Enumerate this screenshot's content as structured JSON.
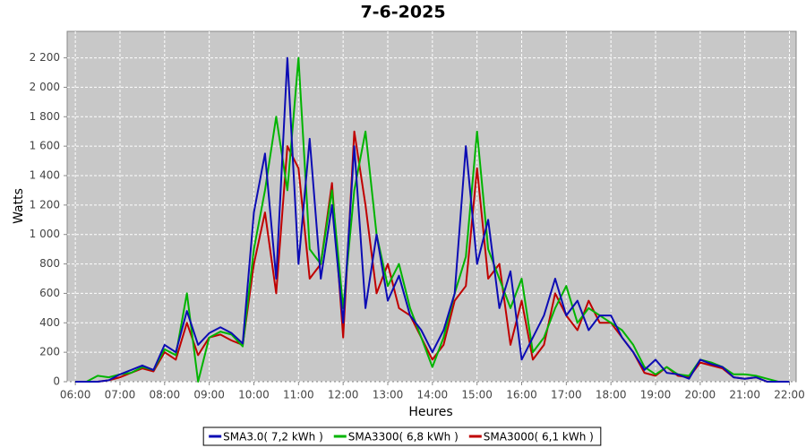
{
  "chart_data": {
    "type": "line",
    "title": "7-6-2025",
    "x_label": "Heures",
    "y_label": "Watts",
    "x": [
      "06:00",
      "06:15",
      "06:30",
      "06:45",
      "07:00",
      "07:15",
      "07:30",
      "07:45",
      "08:00",
      "08:15",
      "08:30",
      "08:45",
      "09:00",
      "09:15",
      "09:30",
      "09:45",
      "10:00",
      "10:15",
      "10:30",
      "10:45",
      "11:00",
      "11:15",
      "11:30",
      "11:45",
      "12:00",
      "12:15",
      "12:30",
      "12:45",
      "13:00",
      "13:15",
      "13:30",
      "13:45",
      "14:00",
      "14:15",
      "14:30",
      "14:45",
      "15:00",
      "15:15",
      "15:30",
      "15:45",
      "16:00",
      "16:15",
      "16:30",
      "16:45",
      "17:00",
      "17:15",
      "17:30",
      "17:45",
      "18:00",
      "18:15",
      "18:30",
      "18:45",
      "19:00",
      "19:15",
      "19:30",
      "19:45",
      "20:00",
      "20:15",
      "20:30",
      "20:45",
      "21:00",
      "21:15",
      "21:30",
      "21:45",
      "22:00"
    ],
    "series": [
      {
        "name": "SMA3.0( 7,2 kWh )",
        "color": "#0c0cb4",
        "values": [
          0,
          0,
          0,
          10,
          50,
          80,
          110,
          80,
          250,
          200,
          480,
          250,
          330,
          370,
          330,
          260,
          1150,
          1550,
          700,
          2200,
          800,
          1650,
          700,
          1200,
          400,
          1600,
          500,
          1000,
          550,
          720,
          450,
          350,
          200,
          350,
          600,
          1600,
          800,
          1100,
          500,
          750,
          150,
          300,
          450,
          700,
          450,
          550,
          350,
          450,
          450,
          300,
          200,
          80,
          150,
          60,
          50,
          20,
          150,
          120,
          100,
          30,
          20,
          30,
          0,
          0,
          0
        ]
      },
      {
        "name": "SMA3300( 6,8 kWh )",
        "color": "#00b400",
        "values": [
          0,
          0,
          40,
          30,
          50,
          60,
          100,
          80,
          220,
          180,
          600,
          0,
          300,
          340,
          320,
          240,
          900,
          1300,
          1800,
          1300,
          2200,
          900,
          800,
          1300,
          500,
          1300,
          1700,
          1000,
          650,
          800,
          500,
          300,
          100,
          300,
          600,
          850,
          1700,
          900,
          700,
          500,
          700,
          200,
          300,
          500,
          650,
          400,
          500,
          450,
          400,
          350,
          250,
          100,
          50,
          100,
          50,
          40,
          150,
          130,
          100,
          50,
          50,
          40,
          20,
          0,
          0
        ]
      },
      {
        "name": "SMA3000( 6,1 kWh )",
        "color": "#c00000",
        "values": [
          0,
          0,
          0,
          10,
          30,
          60,
          90,
          70,
          200,
          150,
          400,
          180,
          300,
          320,
          280,
          250,
          800,
          1150,
          600,
          1600,
          1450,
          700,
          800,
          1350,
          300,
          1700,
          1200,
          600,
          800,
          500,
          450,
          300,
          150,
          250,
          550,
          650,
          1450,
          700,
          800,
          250,
          550,
          150,
          250,
          600,
          450,
          350,
          550,
          400,
          400,
          300,
          200,
          60,
          40,
          100,
          40,
          30,
          130,
          110,
          90,
          30,
          20,
          30,
          0,
          0,
          0
        ]
      }
    ],
    "xlim": [
      "05:49",
      "22:09"
    ],
    "xticks": [
      "06:00",
      "07:00",
      "08:00",
      "09:00",
      "10:00",
      "11:00",
      "12:00",
      "13:00",
      "14:00",
      "15:00",
      "16:00",
      "17:00",
      "18:00",
      "19:00",
      "20:00",
      "21:00",
      "22:00"
    ],
    "ylim": [
      0,
      2380
    ],
    "yticks": [
      0,
      200,
      400,
      600,
      800,
      {
        "value": 1000,
        "label": "1 000"
      },
      {
        "value": 1200,
        "label": "1 200"
      },
      {
        "value": 1400,
        "label": "1 400"
      },
      {
        "value": 1600,
        "label": "1 600"
      },
      {
        "value": 1800,
        "label": "1 800"
      },
      {
        "value": 2000,
        "label": "2 000"
      },
      {
        "value": 2200,
        "label": "2 200"
      }
    ],
    "grid": true,
    "legend": "bottom"
  }
}
